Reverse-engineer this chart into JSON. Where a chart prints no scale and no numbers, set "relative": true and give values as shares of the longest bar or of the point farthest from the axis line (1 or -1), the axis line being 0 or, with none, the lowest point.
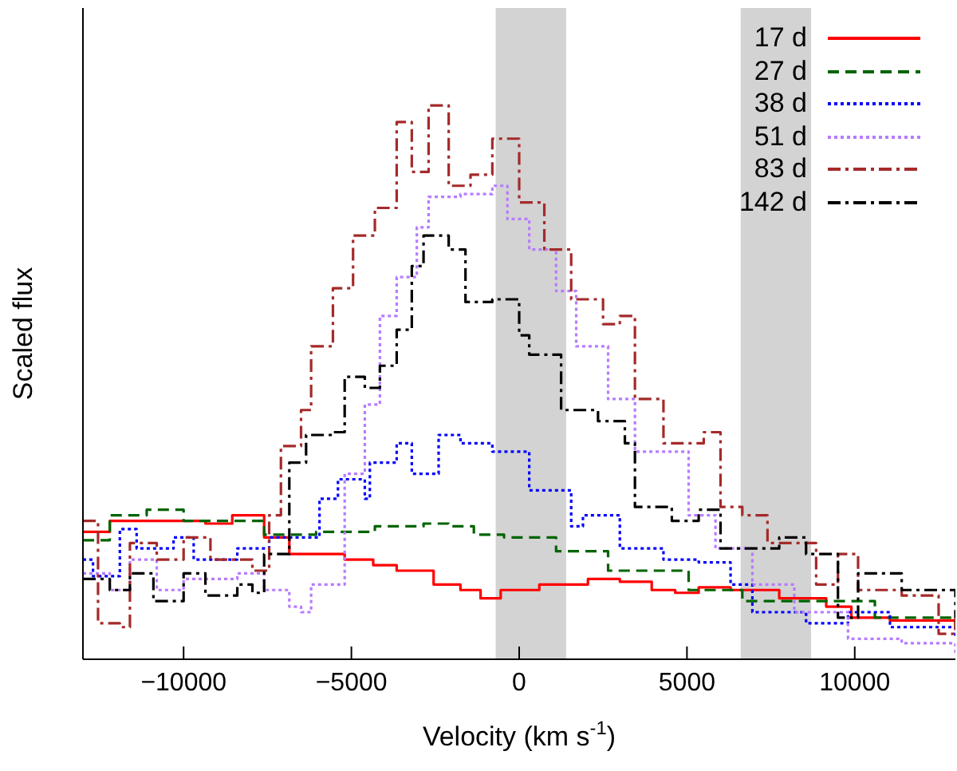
{
  "chart_data": {
    "type": "step",
    "relative": true,
    "xlabel": "Velocity (km s$^{-1}$)",
    "ylabel": "Scaled flux",
    "xlim": [
      -13000,
      13000
    ],
    "xticks": [
      {
        "value": -10000,
        "label": "−10000"
      },
      {
        "value": -5000,
        "label": "−5000"
      },
      0,
      5000,
      10000
    ],
    "legend": "top right",
    "marker": "none",
    "bands": [
      {
        "axis": "x",
        "from": -700,
        "to": 1400,
        "color": "#d3d3d3"
      },
      {
        "axis": "x",
        "from": 6600,
        "to": 8700,
        "color": "#d3d3d3"
      }
    ],
    "series": [
      {
        "name": "17 d",
        "color": "#ff0000",
        "line_style": "solid",
        "x": [
          -13000,
          -12200,
          -10800,
          -10000,
          -9350,
          -8550,
          -7600,
          -6850,
          -6050,
          -5200,
          -4350,
          -3650,
          -2550,
          -1750,
          -1150,
          -550,
          600,
          2050,
          3000,
          3950,
          4650,
          5350,
          6300,
          7750,
          9150,
          9900,
          11050,
          13000
        ],
        "values": [
          0.23,
          0.25,
          0.25,
          0.25,
          0.245,
          0.26,
          0.22,
          0.19,
          0.19,
          0.18,
          0.17,
          0.16,
          0.135,
          0.125,
          0.11,
          0.125,
          0.135,
          0.145,
          0.14,
          0.125,
          0.12,
          0.13,
          0.125,
          0.11,
          0.095,
          0.075,
          0.07,
          0.065
        ]
      },
      {
        "name": "27 d",
        "color": "#006400",
        "line_style": "dashed",
        "x": [
          -13000,
          -12200,
          -11100,
          -10000,
          -7600,
          -6050,
          -4300,
          -2850,
          -2100,
          -1350,
          -450,
          1100,
          2650,
          5050,
          6650,
          9050,
          10600,
          13000
        ],
        "values": [
          0.215,
          0.26,
          0.27,
          0.25,
          0.225,
          0.23,
          0.24,
          0.245,
          0.24,
          0.225,
          0.22,
          0.195,
          0.16,
          0.125,
          0.105,
          0.105,
          0.075,
          0.058
        ]
      },
      {
        "name": "38 d",
        "color": "#0000ff",
        "line_style": "dotted",
        "x": [
          -13000,
          -12700,
          -11900,
          -11400,
          -10300,
          -9700,
          -8400,
          -7450,
          -6500,
          -5950,
          -5400,
          -4600,
          -4450,
          -3650,
          -3200,
          -2400,
          -1750,
          -800,
          300,
          1550,
          1900,
          3000,
          4300,
          5350,
          6300,
          6950,
          8550,
          9800,
          11050,
          13000
        ],
        "values": [
          0.18,
          0.15,
          0.235,
          0.2,
          0.22,
          0.18,
          0.2,
          0.22,
          0.22,
          0.29,
          0.325,
          0.29,
          0.355,
          0.39,
          0.335,
          0.405,
          0.39,
          0.375,
          0.305,
          0.24,
          0.26,
          0.2,
          0.18,
          0.175,
          0.135,
          0.085,
          0.065,
          0.085,
          0.058,
          0.037
        ]
      },
      {
        "name": "51 d",
        "color": "#b77bff",
        "line_style": "dotted",
        "x": [
          -13000,
          -12200,
          -11600,
          -10800,
          -10000,
          -8400,
          -7600,
          -6850,
          -6500,
          -6200,
          -5200,
          -4600,
          -4150,
          -3650,
          -3050,
          -2700,
          -1750,
          -800,
          -350,
          300,
          1100,
          1700,
          2650,
          3450,
          5050,
          5850,
          6950,
          8200,
          9800,
          11400,
          13000
        ],
        "values": [
          0.155,
          0.125,
          0.18,
          0.125,
          0.145,
          0.155,
          0.125,
          0.095,
          0.085,
          0.135,
          0.335,
          0.46,
          0.62,
          0.69,
          0.78,
          0.835,
          0.84,
          0.855,
          0.795,
          0.74,
          0.665,
          0.565,
          0.47,
          0.375,
          0.26,
          0.2,
          0.135,
          0.085,
          0.037,
          0.029,
          0.009
        ]
      },
      {
        "name": "83 d",
        "color": "#a52a2a",
        "line_style": "dashdot",
        "x": [
          -13000,
          -12550,
          -11900,
          -11600,
          -10800,
          -10000,
          -9200,
          -7950,
          -7450,
          -7100,
          -6500,
          -6200,
          -5550,
          -4950,
          -4300,
          -3650,
          -3200,
          -2700,
          -2100,
          -1450,
          -800,
          0,
          750,
          1550,
          2500,
          3000,
          3450,
          4300,
          5500,
          6000,
          6650,
          7400,
          8850,
          9500,
          10100,
          11400,
          12500,
          13000
        ],
        "values": [
          0.25,
          0.065,
          0.058,
          0.21,
          0.18,
          0.22,
          0.18,
          0.16,
          0.26,
          0.385,
          0.45,
          0.565,
          0.67,
          0.765,
          0.815,
          0.97,
          0.88,
          1,
          0.855,
          0.875,
          0.94,
          0.825,
          0.74,
          0.65,
          0.605,
          0.62,
          0.47,
          0.39,
          0.41,
          0.275,
          0.26,
          0.21,
          0.135,
          0.19,
          0.125,
          0.115,
          0.046,
          0.085
        ]
      },
      {
        "name": "142 d",
        "color": "#000000",
        "line_style": "dashdot",
        "x": [
          -13000,
          -12200,
          -11600,
          -10900,
          -10000,
          -9350,
          -8400,
          -7950,
          -7600,
          -6850,
          -6350,
          -5550,
          -5200,
          -4600,
          -4150,
          -3650,
          -3200,
          -2850,
          -2100,
          -1600,
          -800,
          0,
          300,
          1250,
          2350,
          3150,
          3450,
          4550,
          5350,
          6000,
          6650,
          7750,
          8550,
          9500,
          10100,
          11400,
          13000
        ],
        "values": [
          0.145,
          0.125,
          0.155,
          0.105,
          0.155,
          0.115,
          0.135,
          0.12,
          0.19,
          0.355,
          0.405,
          0.41,
          0.51,
          0.49,
          0.53,
          0.595,
          0.71,
          0.765,
          0.74,
          0.645,
          0.65,
          0.585,
          0.55,
          0.45,
          0.43,
          0.39,
          0.275,
          0.25,
          0.27,
          0.2,
          0.2,
          0.22,
          0.19,
          0.075,
          0.155,
          0.125,
          0.075
        ]
      }
    ]
  }
}
